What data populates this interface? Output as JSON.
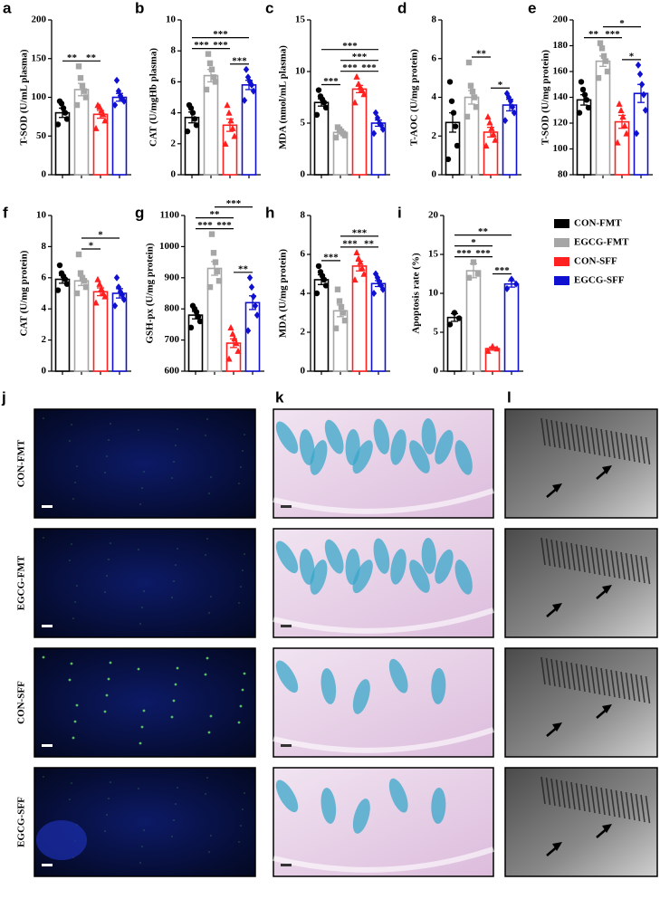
{
  "chart_data": [
    {
      "type": "bar",
      "panel": "a",
      "ylabel": "T-SOD (U/mL plasma)",
      "ylim": [
        0,
        200
      ],
      "yticks": [
        0,
        50,
        100,
        150,
        200
      ],
      "values": [
        80,
        110,
        78,
        100
      ],
      "errors": [
        6,
        8,
        5,
        5
      ],
      "points": [
        [
          65,
          72,
          80,
          86,
          92,
          95
        ],
        [
          90,
          100,
          108,
          115,
          125,
          140
        ],
        [
          60,
          70,
          78,
          83,
          88,
          90
        ],
        [
          90,
          95,
          98,
          102,
          108,
          122
        ]
      ],
      "annotations": [
        {
          "between": [
            0,
            1
          ],
          "label": "**"
        },
        {
          "between": [
            1,
            2
          ],
          "label": "**"
        }
      ]
    },
    {
      "type": "bar",
      "panel": "b",
      "ylabel": "CAT (U/mgHb plasma)",
      "ylim": [
        0,
        10
      ],
      "yticks": [
        0,
        2,
        4,
        6,
        8,
        10
      ],
      "values": [
        3.7,
        6.4,
        3.2,
        5.8
      ],
      "errors": [
        0.35,
        0.4,
        0.4,
        0.3
      ],
      "points": [
        [
          2.8,
          3.2,
          3.6,
          4.0,
          4.3,
          4.5
        ],
        [
          5.5,
          6.0,
          6.3,
          6.8,
          7.2,
          7.8
        ],
        [
          2.0,
          2.5,
          3.0,
          3.5,
          4.0,
          4.5
        ],
        [
          4.8,
          5.4,
          5.8,
          6.0,
          6.3,
          6.8
        ]
      ],
      "annotations": [
        {
          "between": [
            2,
            3
          ],
          "label": "***"
        },
        {
          "between": [
            0,
            1
          ],
          "label": "***"
        },
        {
          "between": [
            1,
            2
          ],
          "label": "***"
        },
        {
          "between": [
            0,
            3
          ],
          "label": "***"
        }
      ]
    },
    {
      "type": "bar",
      "panel": "c",
      "ylabel": "MDA (nmol/mL plasma)",
      "ylim": [
        0,
        15
      ],
      "yticks": [
        0,
        5,
        10,
        15
      ],
      "values": [
        7.0,
        4.1,
        8.3,
        5.0
      ],
      "errors": [
        0.35,
        0.15,
        0.35,
        0.3
      ],
      "points": [
        [
          5.8,
          6.5,
          7.0,
          7.3,
          7.6,
          8.2
        ],
        [
          3.6,
          3.8,
          4.0,
          4.2,
          4.4,
          4.6
        ],
        [
          7.0,
          7.8,
          8.2,
          8.5,
          8.8,
          9.5
        ],
        [
          4.0,
          4.4,
          4.8,
          5.0,
          5.5,
          6.0
        ]
      ],
      "annotations": [
        {
          "between": [
            0,
            1
          ],
          "label": "***"
        },
        {
          "between": [
            2,
            3
          ],
          "label": "***"
        },
        {
          "between": [
            1,
            2
          ],
          "label": "***"
        },
        {
          "between": [
            1,
            3
          ],
          "label": "***"
        },
        {
          "between": [
            0,
            3
          ],
          "label": "***"
        }
      ]
    },
    {
      "type": "bar",
      "panel": "d",
      "ylabel": "T-AOC (U/mg protein)",
      "ylim": [
        0,
        8
      ],
      "yticks": [
        0,
        2,
        4,
        6,
        8
      ],
      "values": [
        2.7,
        4.0,
        2.2,
        3.6
      ],
      "errors": [
        0.5,
        0.35,
        0.25,
        0.3
      ],
      "points": [
        [
          0.8,
          1.5,
          2.5,
          3.2,
          3.8,
          4.8
        ],
        [
          3.0,
          3.5,
          4.0,
          4.3,
          4.6,
          5.8
        ],
        [
          1.5,
          1.8,
          2.1,
          2.4,
          2.7,
          3.0
        ],
        [
          2.8,
          3.2,
          3.5,
          3.8,
          4.0,
          4.2
        ]
      ],
      "annotations": [
        {
          "between": [
            2,
            3
          ],
          "label": "*"
        },
        {
          "between": [
            1,
            2
          ],
          "label": "**"
        }
      ]
    },
    {
      "type": "bar",
      "panel": "e",
      "ylabel": "T-SOD (U/mg protein)",
      "ylim": [
        80,
        200
      ],
      "yticks": [
        80,
        100,
        120,
        140,
        160,
        180,
        200
      ],
      "values": [
        138,
        168,
        121,
        143
      ],
      "errors": [
        4,
        4,
        5,
        7
      ],
      "points": [
        [
          128,
          132,
          138,
          142,
          146,
          152
        ],
        [
          155,
          160,
          168,
          172,
          178,
          182
        ],
        [
          105,
          112,
          118,
          125,
          130,
          135
        ],
        [
          112,
          130,
          142,
          150,
          158,
          165
        ]
      ],
      "annotations": [
        {
          "between": [
            2,
            3
          ],
          "label": "*"
        },
        {
          "between": [
            0,
            1
          ],
          "label": "**"
        },
        {
          "between": [
            1,
            2
          ],
          "label": "***"
        },
        {
          "between": [
            1,
            3
          ],
          "label": "*"
        }
      ]
    },
    {
      "type": "bar",
      "panel": "f",
      "ylabel": "CAT (U/mg protein)",
      "ylim": [
        0,
        10
      ],
      "yticks": [
        0,
        2,
        4,
        6,
        8,
        10
      ],
      "values": [
        5.9,
        5.8,
        5.1,
        5.0
      ],
      "errors": [
        0.25,
        0.3,
        0.25,
        0.3
      ],
      "points": [
        [
          5.2,
          5.6,
          5.9,
          6.1,
          6.3,
          6.8
        ],
        [
          5.0,
          5.4,
          5.8,
          6.0,
          6.3,
          7.5
        ],
        [
          4.4,
          4.8,
          5.0,
          5.3,
          5.6,
          5.9
        ],
        [
          4.2,
          4.6,
          4.9,
          5.1,
          5.4,
          6.0
        ]
      ],
      "annotations": [
        {
          "between": [
            1,
            2
          ],
          "label": "*"
        },
        {
          "between": [
            1,
            3
          ],
          "label": "*"
        }
      ]
    },
    {
      "type": "bar",
      "panel": "g",
      "ylabel": "GSH-px (U/mg protein)",
      "ylim": [
        600,
        1100
      ],
      "yticks": [
        600,
        700,
        800,
        900,
        1000,
        1100
      ],
      "values": [
        780,
        930,
        690,
        820
      ],
      "errors": [
        12,
        22,
        14,
        22
      ],
      "points": [
        [
          740,
          760,
          775,
          790,
          800,
          810
        ],
        [
          870,
          890,
          920,
          950,
          980,
          1040
        ],
        [
          640,
          665,
          690,
          705,
          720,
          740
        ],
        [
          730,
          780,
          810,
          840,
          870,
          900
        ]
      ],
      "annotations": [
        {
          "between": [
            2,
            3
          ],
          "label": "**"
        },
        {
          "between": [
            0,
            1
          ],
          "label": "***"
        },
        {
          "between": [
            1,
            2
          ],
          "label": "***"
        },
        {
          "between": [
            0,
            2
          ],
          "label": "**"
        },
        {
          "between": [
            1,
            3
          ],
          "label": "***"
        }
      ]
    },
    {
      "type": "bar",
      "panel": "h",
      "ylabel": "MDA (U/mg protein)",
      "ylim": [
        0,
        8
      ],
      "yticks": [
        0,
        2,
        4,
        6,
        8
      ],
      "values": [
        4.7,
        3.1,
        5.4,
        4.5
      ],
      "errors": [
        0.25,
        0.3,
        0.25,
        0.15
      ],
      "points": [
        [
          4.0,
          4.4,
          4.7,
          4.9,
          5.1,
          5.4
        ],
        [
          2.2,
          2.6,
          3.0,
          3.3,
          3.6,
          4.2
        ],
        [
          4.7,
          5.0,
          5.3,
          5.6,
          5.8,
          6.1
        ],
        [
          4.0,
          4.2,
          4.4,
          4.6,
          4.8,
          5.0
        ]
      ],
      "annotations": [
        {
          "between": [
            2,
            3
          ],
          "label": "**"
        },
        {
          "between": [
            0,
            1
          ],
          "label": "***"
        },
        {
          "between": [
            1,
            2
          ],
          "label": "***"
        },
        {
          "between": [
            1,
            3
          ],
          "label": "***"
        }
      ]
    },
    {
      "type": "bar",
      "panel": "i",
      "ylabel": "Apoptosis rate (%)",
      "ylim": [
        0,
        20
      ],
      "yticks": [
        0,
        5,
        10,
        15,
        20
      ],
      "values": [
        6.9,
        12.9,
        2.9,
        11.2
      ],
      "errors": [
        0.5,
        0.9,
        0.2,
        0.4
      ],
      "points": [
        [
          6.0,
          6.8,
          7.5
        ],
        [
          12.0,
          12.5,
          14.0
        ],
        [
          2.6,
          2.9,
          3.2
        ],
        [
          10.6,
          11.2,
          11.8
        ]
      ],
      "annotations": [
        {
          "between": [
            2,
            3
          ],
          "label": "***"
        },
        {
          "between": [
            0,
            1
          ],
          "label": "***"
        },
        {
          "between": [
            1,
            2
          ],
          "label": "***"
        },
        {
          "between": [
            0,
            2
          ],
          "label": "*"
        },
        {
          "between": [
            0,
            3
          ],
          "label": "**"
        }
      ]
    }
  ],
  "legend": [
    {
      "name": "CON-FMT",
      "color": "#000000"
    },
    {
      "name": "EGCG-FMT",
      "color": "#a6a6a6"
    },
    {
      "name": "CON-SFF",
      "color": "#ff2020"
    },
    {
      "name": "EGCG-SFF",
      "color": "#1010d0"
    }
  ],
  "images": {
    "panels": [
      "j",
      "k",
      "l"
    ],
    "rows": [
      "CON-FMT",
      "EGCG-FMT",
      "CON-SFF",
      "EGCG-SFF"
    ]
  }
}
